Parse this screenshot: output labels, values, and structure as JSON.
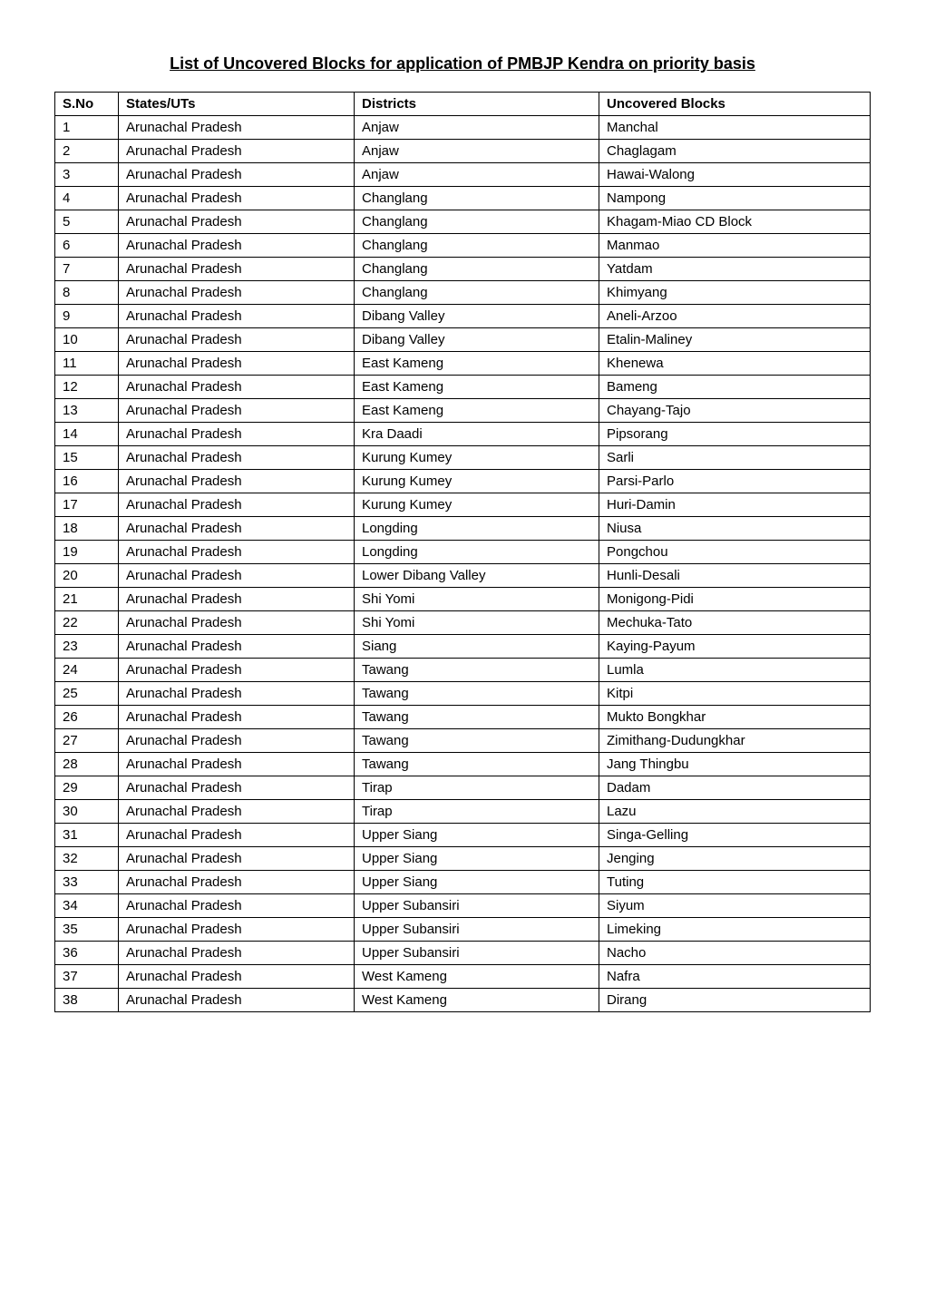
{
  "title": "List of Uncovered Blocks for application of PMBJP Kendra on priority basis",
  "table": {
    "columns": [
      "S.No",
      "States/UTs",
      "Districts",
      "Uncovered Blocks"
    ],
    "column_widths": [
      "70px",
      "260px",
      "270px",
      "auto"
    ],
    "header_fontweight": "bold",
    "cell_fontsize": 15,
    "border_color": "#000000",
    "text_color": "#000000",
    "background_color": "#ffffff",
    "rows": [
      [
        "1",
        "Arunachal Pradesh",
        "Anjaw",
        "Manchal"
      ],
      [
        "2",
        "Arunachal Pradesh",
        "Anjaw",
        "Chaglagam"
      ],
      [
        "3",
        "Arunachal Pradesh",
        "Anjaw",
        "Hawai-Walong"
      ],
      [
        "4",
        "Arunachal Pradesh",
        "Changlang",
        "Nampong"
      ],
      [
        "5",
        "Arunachal Pradesh",
        "Changlang",
        "Khagam-Miao CD Block"
      ],
      [
        "6",
        "Arunachal Pradesh",
        "Changlang",
        "Manmao"
      ],
      [
        "7",
        "Arunachal Pradesh",
        "Changlang",
        "Yatdam"
      ],
      [
        "8",
        "Arunachal Pradesh",
        "Changlang",
        "Khimyang"
      ],
      [
        "9",
        "Arunachal Pradesh",
        "Dibang Valley",
        "Aneli-Arzoo"
      ],
      [
        "10",
        "Arunachal Pradesh",
        "Dibang Valley",
        "Etalin-Maliney"
      ],
      [
        "11",
        "Arunachal Pradesh",
        "East Kameng",
        "Khenewa"
      ],
      [
        "12",
        "Arunachal Pradesh",
        "East Kameng",
        "Bameng"
      ],
      [
        "13",
        "Arunachal Pradesh",
        "East Kameng",
        "Chayang-Tajo"
      ],
      [
        "14",
        "Arunachal Pradesh",
        "Kra Daadi",
        "Pipsorang"
      ],
      [
        "15",
        "Arunachal Pradesh",
        "Kurung Kumey",
        "Sarli"
      ],
      [
        "16",
        "Arunachal Pradesh",
        "Kurung Kumey",
        "Parsi-Parlo"
      ],
      [
        "17",
        "Arunachal Pradesh",
        "Kurung Kumey",
        "Huri-Damin"
      ],
      [
        "18",
        "Arunachal Pradesh",
        "Longding",
        "Niusa"
      ],
      [
        "19",
        "Arunachal Pradesh",
        "Longding",
        "Pongchou"
      ],
      [
        "20",
        "Arunachal Pradesh",
        "Lower Dibang Valley",
        "Hunli-Desali"
      ],
      [
        "21",
        "Arunachal Pradesh",
        "Shi Yomi",
        "Monigong-Pidi"
      ],
      [
        "22",
        "Arunachal Pradesh",
        "Shi Yomi",
        "Mechuka-Tato"
      ],
      [
        "23",
        "Arunachal Pradesh",
        "Siang",
        "Kaying-Payum"
      ],
      [
        "24",
        "Arunachal Pradesh",
        "Tawang",
        "Lumla"
      ],
      [
        "25",
        "Arunachal Pradesh",
        "Tawang",
        "Kitpi"
      ],
      [
        "26",
        "Arunachal Pradesh",
        "Tawang",
        "Mukto Bongkhar"
      ],
      [
        "27",
        "Arunachal Pradesh",
        "Tawang",
        "Zimithang-Dudungkhar"
      ],
      [
        "28",
        "Arunachal Pradesh",
        "Tawang",
        "Jang Thingbu"
      ],
      [
        "29",
        "Arunachal Pradesh",
        "Tirap",
        "Dadam"
      ],
      [
        "30",
        "Arunachal Pradesh",
        "Tirap",
        "Lazu"
      ],
      [
        "31",
        "Arunachal Pradesh",
        "Upper Siang",
        "Singa-Gelling"
      ],
      [
        "32",
        "Arunachal Pradesh",
        "Upper Siang",
        "Jenging"
      ],
      [
        "33",
        "Arunachal Pradesh",
        "Upper Siang",
        "Tuting"
      ],
      [
        "34",
        "Arunachal Pradesh",
        "Upper Subansiri",
        "Siyum"
      ],
      [
        "35",
        "Arunachal Pradesh",
        "Upper Subansiri",
        "Limeking"
      ],
      [
        "36",
        "Arunachal Pradesh",
        "Upper Subansiri",
        "Nacho"
      ],
      [
        "37",
        "Arunachal Pradesh",
        "West Kameng",
        "Nafra"
      ],
      [
        "38",
        "Arunachal Pradesh",
        "West Kameng",
        "Dirang"
      ]
    ]
  },
  "title_style": {
    "fontsize": 18,
    "fontweight": "bold",
    "text_decoration": "underline",
    "text_align": "center",
    "color": "#000000"
  }
}
